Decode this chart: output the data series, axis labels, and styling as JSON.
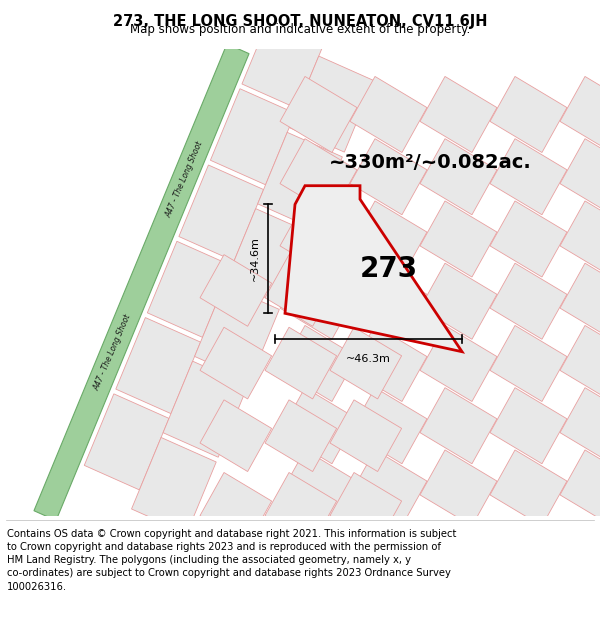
{
  "title": "273, THE LONG SHOOT, NUNEATON, CV11 6JH",
  "subtitle": "Map shows position and indicative extent of the property.",
  "footer": "Contains OS data © Crown copyright and database right 2021. This information is subject\nto Crown copyright and database rights 2023 and is reproduced with the permission of\nHM Land Registry. The polygons (including the associated geometry, namely x, y\nco-ordinates) are subject to Crown copyright and database rights 2023 Ordnance Survey\n100026316.",
  "map_bg": "#f5f5f5",
  "road_color": "#9ecf9b",
  "road_border": "#6aaa68",
  "parcel_fill": "#e8e8e8",
  "parcel_edge": "#e8a0a0",
  "subject_edge": "#cc0000",
  "dim_color": "#222222",
  "area_text": "~330m²/~0.082ac.",
  "plot_label": "273",
  "dim_h": "~46.3m",
  "dim_v": "~34.6m",
  "road_label": "A47 - The Long Shoot",
  "title_fontsize": 10.5,
  "subtitle_fontsize": 8.5,
  "footer_fontsize": 7.2,
  "area_fontsize": 14,
  "plot_label_fontsize": 20
}
